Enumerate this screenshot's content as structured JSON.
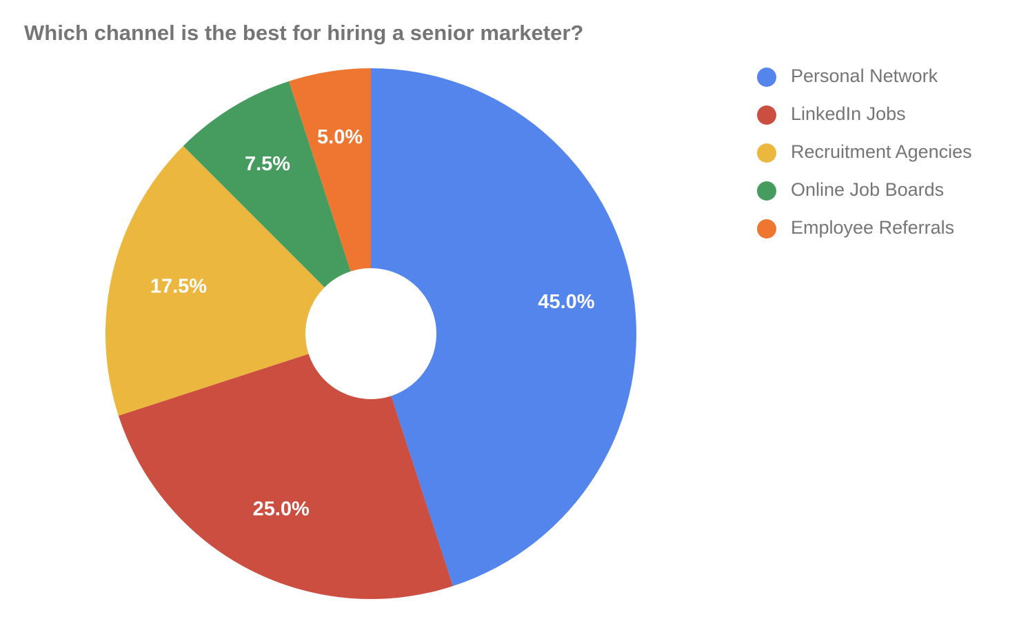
{
  "chart_data": {
    "type": "donut",
    "title": "Which channel is the best for hiring a senior marketer?",
    "categories": [
      "Personal Network",
      "LinkedIn Jobs",
      "Recruitment Agencies",
      "Online Job Boards",
      "Employee Referrals"
    ],
    "values": [
      45,
      25,
      17.5,
      7.5,
      5
    ],
    "value_labels": [
      "45.0%",
      "25.0%",
      "17.5%",
      "7.5%",
      "5.0%"
    ],
    "colors": [
      "#5385ec",
      "#cc4e40",
      "#ebb73e",
      "#459c5e",
      "#ee7631"
    ],
    "legend": "right"
  }
}
